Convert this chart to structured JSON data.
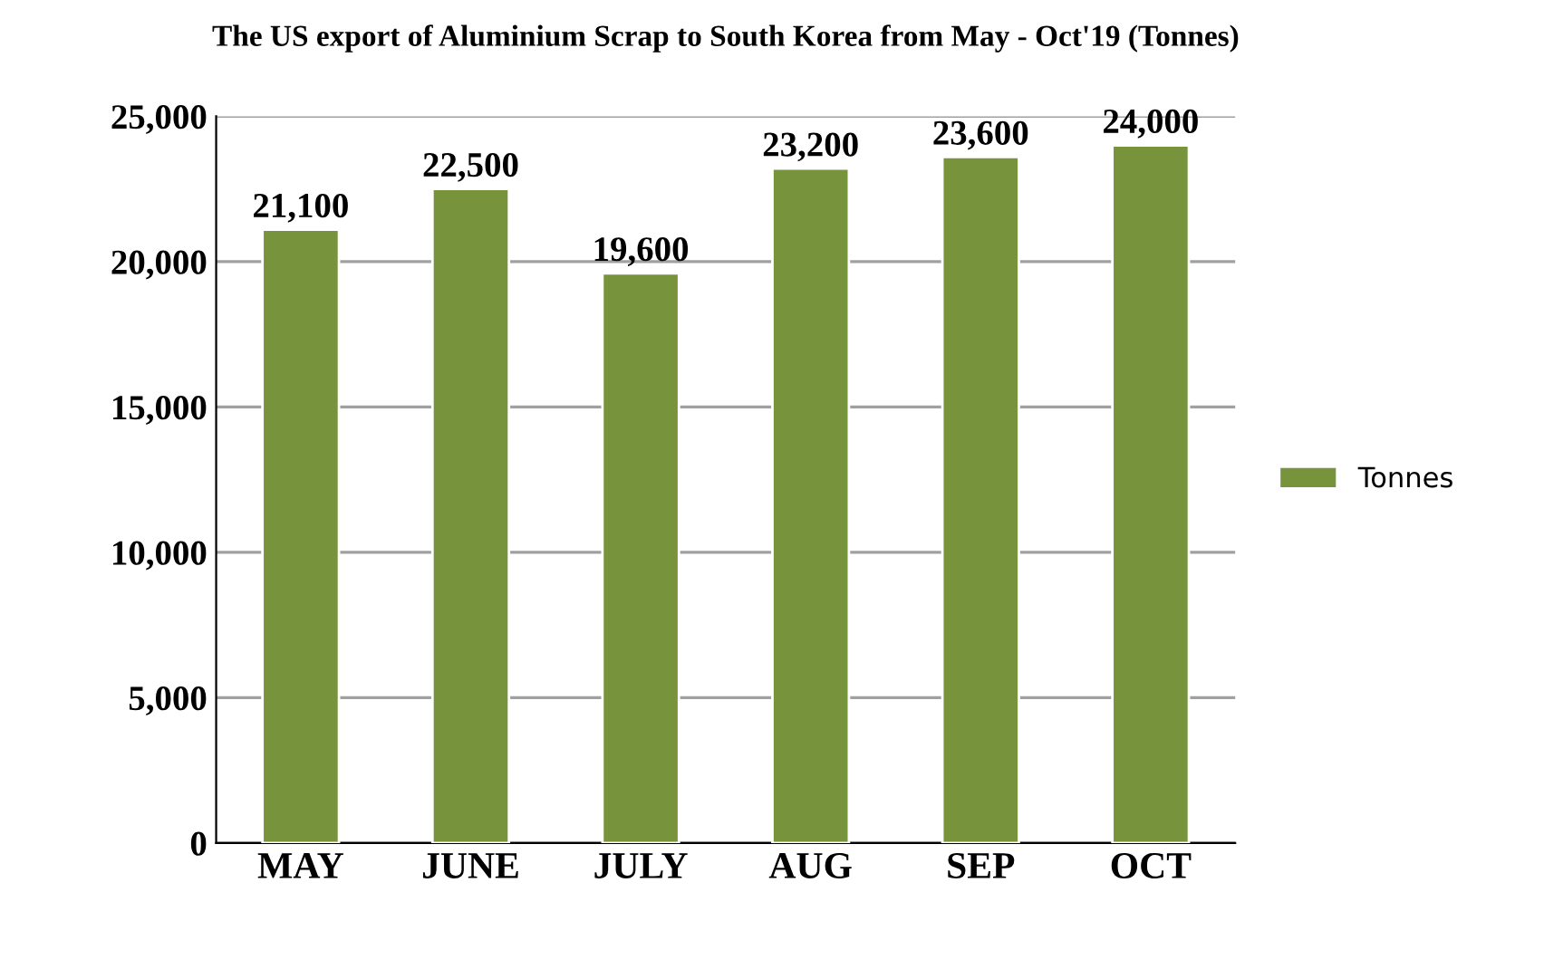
{
  "chart_data": {
    "type": "bar",
    "title": "The US export of Aluminium Scrap to South Korea from May - Oct'19 (Tonnes)",
    "categories": [
      "MAY",
      "JUNE",
      "JULY",
      "AUG",
      "SEP",
      "OCT"
    ],
    "series": [
      {
        "name": "Tonnes",
        "color": "#77933c",
        "values": [
          21100,
          22500,
          19600,
          23200,
          23600,
          24000
        ]
      }
    ],
    "ylim": [
      0,
      25000
    ],
    "yticks": [
      {
        "value": 0,
        "label": "0"
      },
      {
        "value": 5000,
        "label": "5,000"
      },
      {
        "value": 10000,
        "label": "10,000"
      },
      {
        "value": 15000,
        "label": "15,000"
      },
      {
        "value": 20000,
        "label": "20,000"
      },
      {
        "value": 25000,
        "label": "25,000"
      }
    ],
    "value_labels": [
      "21,100",
      "22,500",
      "19,600",
      "23,200",
      "23,600",
      "24,000"
    ],
    "grid": "y",
    "legend": "right"
  }
}
